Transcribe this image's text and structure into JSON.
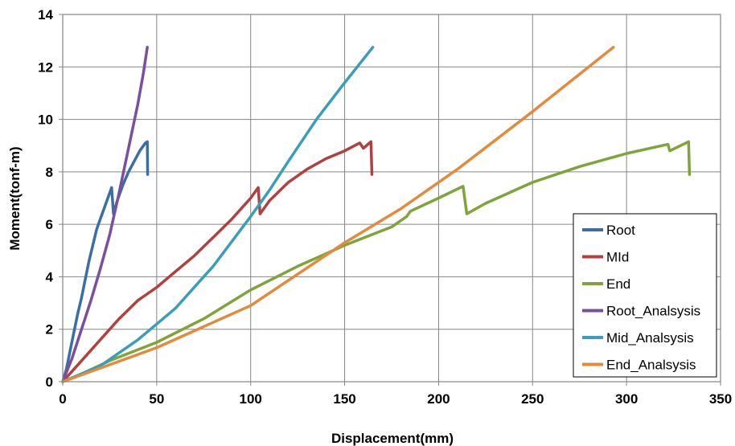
{
  "chart_data": {
    "type": "line",
    "title": "",
    "xlabel": "Displacement(mm)",
    "ylabel": "Moment(tonf-m)",
    "xlim": [
      0,
      350
    ],
    "ylim": [
      0,
      14
    ],
    "xticks": [
      0,
      50,
      100,
      150,
      200,
      250,
      300,
      350
    ],
    "yticks": [
      0,
      2,
      4,
      6,
      8,
      10,
      12,
      14
    ],
    "grid": true,
    "legend_position": "bottom-right",
    "series": [
      {
        "name": "Root",
        "color": "#3a6ea5",
        "points": [
          [
            0,
            0
          ],
          [
            2,
            0.5
          ],
          [
            4,
            1.2
          ],
          [
            6,
            1.9
          ],
          [
            8,
            2.6
          ],
          [
            10,
            3.2
          ],
          [
            12,
            3.9
          ],
          [
            14,
            4.6
          ],
          [
            16,
            5.2
          ],
          [
            18,
            5.8
          ],
          [
            20,
            6.2
          ],
          [
            22,
            6.6
          ],
          [
            24,
            7.0
          ],
          [
            26,
            7.4
          ],
          [
            27,
            6.4
          ],
          [
            29,
            6.9
          ],
          [
            32,
            7.5
          ],
          [
            35,
            8.0
          ],
          [
            38,
            8.4
          ],
          [
            41,
            8.8
          ],
          [
            43,
            9.0
          ],
          [
            44,
            9.1
          ],
          [
            45,
            9.15
          ],
          [
            45.2,
            7.9
          ]
        ]
      },
      {
        "name": "MId",
        "color": "#b0413e",
        "points": [
          [
            0,
            0
          ],
          [
            5,
            0.4
          ],
          [
            10,
            0.8
          ],
          [
            20,
            1.6
          ],
          [
            30,
            2.4
          ],
          [
            40,
            3.1
          ],
          [
            50,
            3.6
          ],
          [
            60,
            4.2
          ],
          [
            70,
            4.8
          ],
          [
            80,
            5.5
          ],
          [
            90,
            6.2
          ],
          [
            100,
            7.0
          ],
          [
            104,
            7.4
          ],
          [
            105,
            6.4
          ],
          [
            110,
            6.9
          ],
          [
            120,
            7.6
          ],
          [
            130,
            8.1
          ],
          [
            140,
            8.5
          ],
          [
            150,
            8.8
          ],
          [
            158,
            9.1
          ],
          [
            160,
            8.9
          ],
          [
            164,
            9.15
          ],
          [
            164.5,
            7.9
          ]
        ]
      },
      {
        "name": "End",
        "color": "#7ea43a",
        "points": [
          [
            0,
            0
          ],
          [
            10,
            0.3
          ],
          [
            25,
            0.8
          ],
          [
            50,
            1.5
          ],
          [
            75,
            2.4
          ],
          [
            100,
            3.5
          ],
          [
            125,
            4.4
          ],
          [
            150,
            5.2
          ],
          [
            175,
            5.9
          ],
          [
            183,
            6.3
          ],
          [
            185,
            6.5
          ],
          [
            200,
            7.0
          ],
          [
            213,
            7.45
          ],
          [
            215,
            6.4
          ],
          [
            225,
            6.8
          ],
          [
            250,
            7.6
          ],
          [
            275,
            8.2
          ],
          [
            300,
            8.7
          ],
          [
            322,
            9.05
          ],
          [
            323,
            8.8
          ],
          [
            333,
            9.15
          ],
          [
            333.5,
            7.9
          ]
        ]
      },
      {
        "name": "Root_Analsysis",
        "color": "#7a4fa0",
        "points": [
          [
            0,
            0
          ],
          [
            5,
            0.9
          ],
          [
            10,
            2.0
          ],
          [
            15,
            3.1
          ],
          [
            20,
            4.3
          ],
          [
            25,
            5.6
          ],
          [
            30,
            7.2
          ],
          [
            35,
            8.9
          ],
          [
            40,
            10.6
          ],
          [
            43,
            11.8
          ],
          [
            45,
            12.75
          ]
        ]
      },
      {
        "name": "Mid_Analsysis",
        "color": "#3b9eb8",
        "points": [
          [
            0,
            0
          ],
          [
            20,
            0.6
          ],
          [
            40,
            1.6
          ],
          [
            50,
            2.2
          ],
          [
            60,
            2.8
          ],
          [
            80,
            4.4
          ],
          [
            100,
            6.3
          ],
          [
            110,
            7.3
          ],
          [
            120,
            8.4
          ],
          [
            135,
            10.0
          ],
          [
            150,
            11.4
          ],
          [
            165,
            12.75
          ]
        ]
      },
      {
        "name": "End_Analsysis",
        "color": "#e38a3c",
        "points": [
          [
            0,
            0
          ],
          [
            50,
            1.3
          ],
          [
            100,
            2.9
          ],
          [
            150,
            5.3
          ],
          [
            180,
            6.6
          ],
          [
            210,
            8.1
          ],
          [
            250,
            10.3
          ],
          [
            293,
            12.75
          ]
        ]
      }
    ]
  }
}
